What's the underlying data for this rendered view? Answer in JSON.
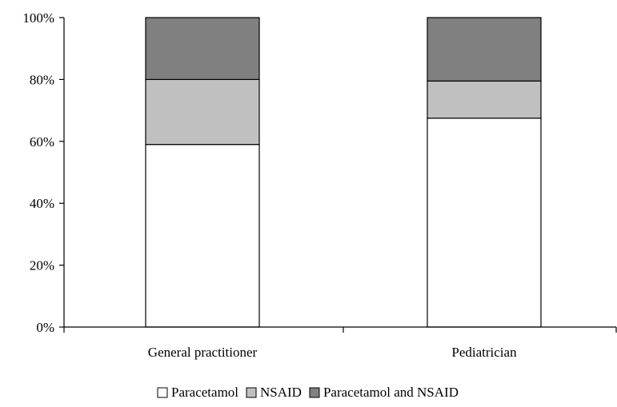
{
  "chart_data": {
    "type": "bar",
    "stacked": true,
    "categories": [
      "General practitioner",
      "Pediatrician"
    ],
    "series": [
      {
        "name": "Paracetamol",
        "values": [
          59,
          67.5
        ],
        "color": "#ffffff"
      },
      {
        "name": "NSAID",
        "values": [
          21,
          12
        ],
        "color": "#c0c0c0"
      },
      {
        "name": "Paracetamol and NSAID",
        "values": [
          20,
          20.5
        ],
        "color": "#808080"
      }
    ],
    "ylim": [
      0,
      100
    ],
    "yticks": [
      0,
      20,
      40,
      60,
      80,
      100
    ],
    "ytick_labels": [
      "0%",
      "20%",
      "40%",
      "60%",
      "80%",
      "100%"
    ],
    "title": "",
    "xlabel": "",
    "ylabel": "",
    "grid": false,
    "legend_position": "bottom"
  }
}
